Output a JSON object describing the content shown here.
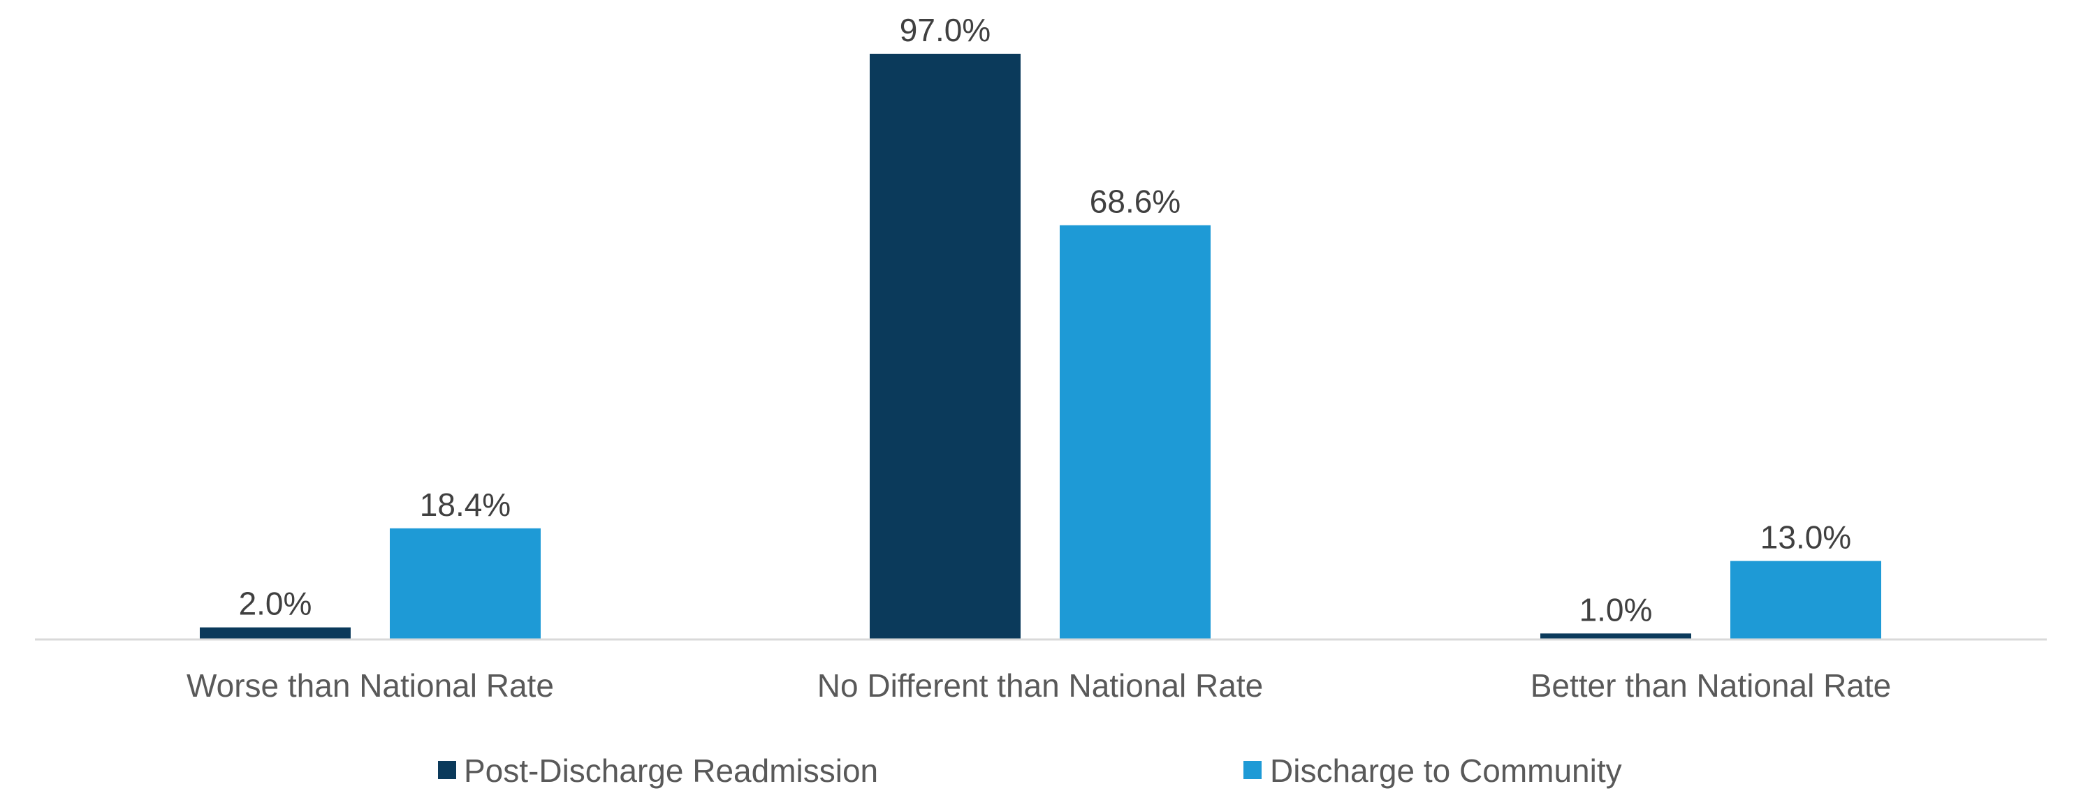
{
  "chart_data": {
    "type": "bar",
    "title": "",
    "xlabel": "",
    "ylabel": "",
    "categories": [
      "Worse than National Rate",
      "No Different than National Rate",
      "Better than National Rate"
    ],
    "series": [
      {
        "name": "Post-Discharge Readmission",
        "color": "#0b3a5b",
        "values": [
          2.0,
          97.0,
          1.0
        ],
        "labels": [
          "2.0%",
          "97.0%",
          "1.0%"
        ]
      },
      {
        "name": "Discharge to Community",
        "color": "#1e9ad6",
        "values": [
          18.4,
          68.6,
          13.0
        ],
        "labels": [
          "18.4%",
          "68.6%",
          "13.0%"
        ]
      }
    ],
    "ylim": [
      0,
      100
    ],
    "grid": false,
    "y_axis_visible": false,
    "legend_position": "bottom",
    "axis_color": "#d9d9d9"
  }
}
